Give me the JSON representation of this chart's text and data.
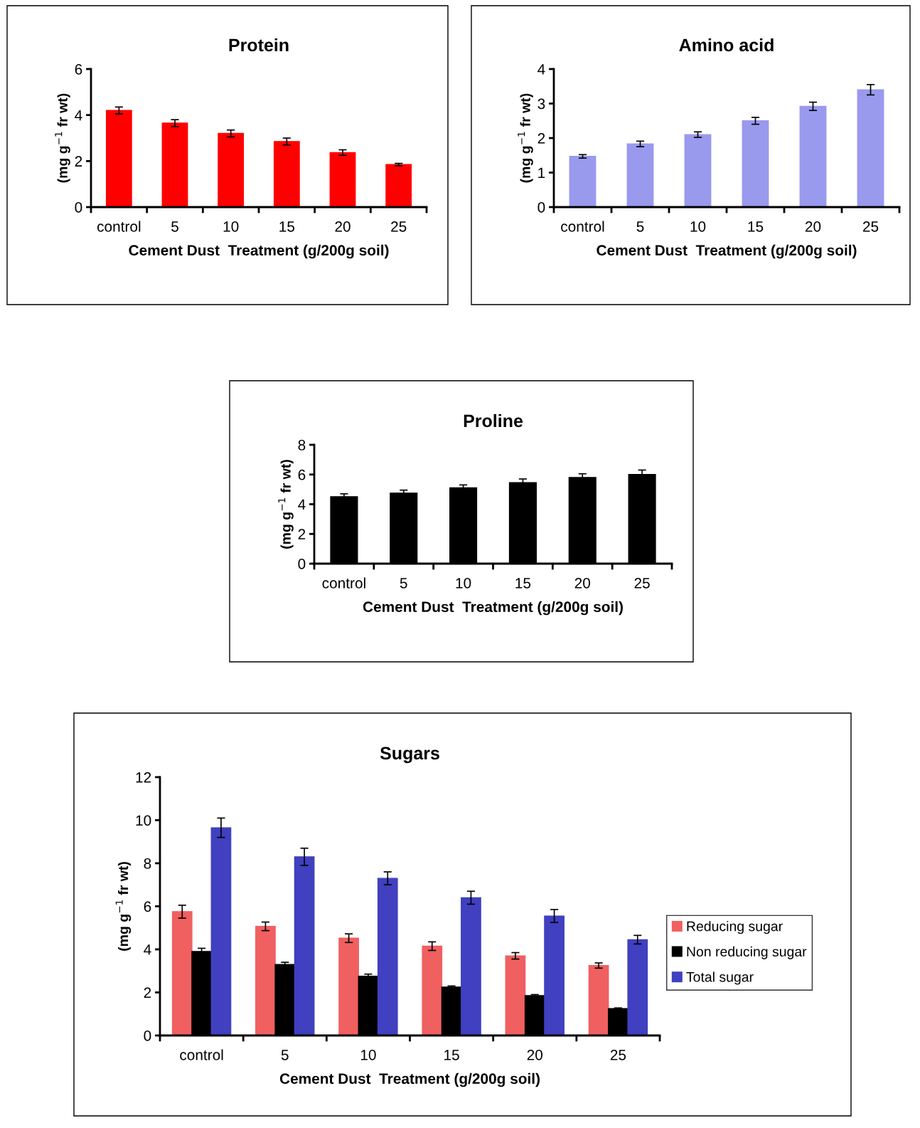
{
  "chart_data": [
    {
      "type": "bar",
      "title": "Protein",
      "xlabel": "Cement Dust  Treatment (g/200g soil)",
      "ylabel": "(mg g$^{−1}$ fr wt)",
      "categories": [
        "control",
        "5",
        "10",
        "15",
        "20",
        "25"
      ],
      "values": [
        4.2,
        3.65,
        3.2,
        2.85,
        2.37,
        1.85
      ],
      "errors": [
        0.15,
        0.15,
        0.15,
        0.15,
        0.12,
        0.05
      ],
      "color": "#ff0000",
      "ylim": [
        0,
        6
      ],
      "yticks": [
        0,
        2,
        4,
        6
      ],
      "grid": false
    },
    {
      "type": "bar",
      "title": "Amino acid",
      "xlabel": "Cement Dust  Treatment (g/200g soil)",
      "ylabel": "(mg g$^{−1}$ fr wt)",
      "categories": [
        "control",
        "5",
        "10",
        "15",
        "20",
        "25"
      ],
      "values": [
        1.47,
        1.83,
        2.1,
        2.5,
        2.92,
        3.4
      ],
      "errors": [
        0.05,
        0.08,
        0.08,
        0.1,
        0.12,
        0.15
      ],
      "color": "#9999ee",
      "ylim": [
        0,
        4
      ],
      "yticks": [
        0,
        1,
        2,
        3,
        4
      ],
      "grid": false
    },
    {
      "type": "bar",
      "title": "Proline",
      "xlabel": "Cement Dust  Treatment (g/200g soil)",
      "ylabel": "(mg g$^{−1}$ fr wt)",
      "categories": [
        "control",
        "5",
        "10",
        "15",
        "20",
        "25"
      ],
      "values": [
        4.5,
        4.75,
        5.1,
        5.45,
        5.8,
        6.0
      ],
      "errors": [
        0.2,
        0.2,
        0.2,
        0.25,
        0.25,
        0.3
      ],
      "color": "#000000",
      "ylim": [
        0,
        8
      ],
      "yticks": [
        0,
        2,
        4,
        6,
        8
      ],
      "grid": false
    },
    {
      "type": "bar",
      "title": "Sugars",
      "xlabel": "Cement Dust  Treatment (g/200g soil)",
      "ylabel": "(mg g$^{−1}$ fr wt)",
      "categories": [
        "control",
        "5",
        "10",
        "15",
        "20",
        "25"
      ],
      "ylim": [
        0,
        12
      ],
      "yticks": [
        0,
        2,
        4,
        6,
        8,
        10,
        12
      ],
      "grid": false,
      "legend": "right",
      "series": [
        {
          "name": "Reducing sugar",
          "color": "#f06060",
          "values": [
            5.75,
            5.07,
            4.52,
            4.15,
            3.7,
            3.25
          ],
          "errors": [
            0.3,
            0.2,
            0.2,
            0.2,
            0.15,
            0.12
          ]
        },
        {
          "name": "Non reducing sugar",
          "color": "#000000",
          "values": [
            3.9,
            3.3,
            2.75,
            2.25,
            1.85,
            1.25
          ],
          "errors": [
            0.15,
            0.1,
            0.1,
            0.05,
            0.05,
            0.03
          ]
        },
        {
          "name": "Total sugar",
          "color": "#4040c0",
          "values": [
            9.65,
            8.3,
            7.3,
            6.4,
            5.55,
            4.45
          ],
          "errors": [
            0.45,
            0.4,
            0.3,
            0.3,
            0.3,
            0.2
          ]
        }
      ]
    }
  ]
}
